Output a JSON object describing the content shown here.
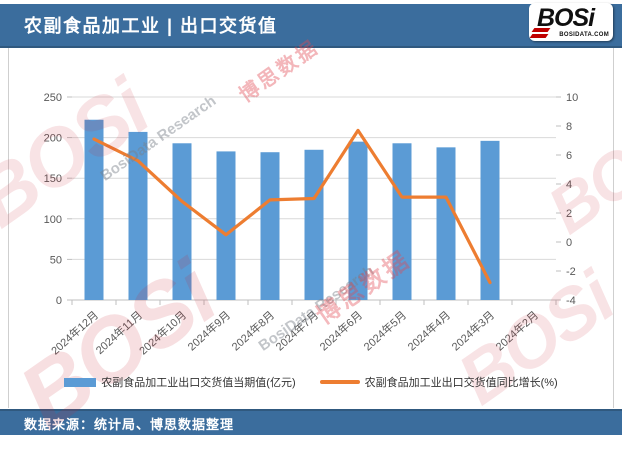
{
  "header": {
    "title": "农副食品加工业 | 出口交货值",
    "logo_text": "BOSi",
    "logo_subtext": "BOSIDATA.COM"
  },
  "footer": {
    "source": "数据来源：统计局、博思数据整理"
  },
  "watermarks": {
    "logo_text": "BOSi",
    "cn_text": "博思数据",
    "en_text": "BosiData Research"
  },
  "colors": {
    "header_bg": "#3B6D9D",
    "bar": "#5B9BD5",
    "line": "#ED7D31",
    "grid": "#D9D9D9",
    "axis_tick": "#BFBFBF",
    "axis_text": "#595959"
  },
  "chart_data": {
    "type": "bar",
    "subtype": "bar-line-combo",
    "title": "农副食品加工业 | 出口交货值",
    "categories": [
      "2024年12月",
      "2024年11月",
      "2024年10月",
      "2024年9月",
      "2024年8月",
      "2024年7月",
      "2024年6月",
      "2024年5月",
      "2024年4月",
      "2024年3月",
      "2024年2月"
    ],
    "series": [
      {
        "name": "农副食品加工业出口交货值当期值(亿元)",
        "type": "bar",
        "axis": "left",
        "color": "#5B9BD5",
        "values": [
          222,
          207,
          193,
          183,
          182,
          185,
          195,
          193,
          188,
          196,
          null
        ]
      },
      {
        "name": "农副食品加工业出口交货值同比增长(%)",
        "type": "line",
        "axis": "right",
        "color": "#ED7D31",
        "values": [
          7.1,
          5.6,
          2.8,
          0.5,
          2.9,
          3.0,
          7.7,
          3.1,
          3.1,
          -2.8,
          null
        ]
      }
    ],
    "left_axis": {
      "min": 0,
      "max": 250,
      "step": 50
    },
    "right_axis": {
      "min": -4,
      "max": 10,
      "step": 2
    },
    "grid": true,
    "legend_position": "bottom"
  }
}
